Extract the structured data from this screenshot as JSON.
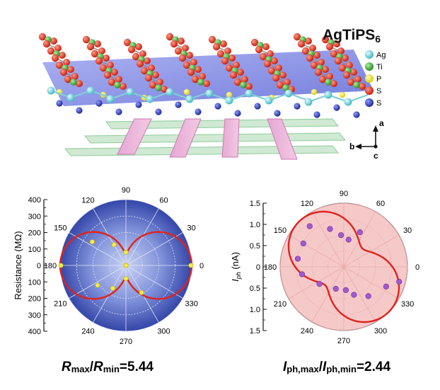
{
  "top_panel": {
    "title_main": "AgTiPS",
    "title_sub": "6",
    "legend": [
      {
        "label": "Ag",
        "color": "#7fd6df"
      },
      {
        "label": "Ti",
        "color": "#3da53d"
      },
      {
        "label": "P",
        "color": "#e8e23a"
      },
      {
        "label": "S",
        "color": "#d9311f"
      },
      {
        "label": "S",
        "color": "#2f3fb5"
      }
    ],
    "axes": {
      "a": "a",
      "b": "b",
      "c": "c"
    }
  },
  "chart_data": [
    {
      "type": "polar",
      "ylabel": "Resistance (MΩ)",
      "scale_ticks": [
        "400",
        "300",
        "200",
        "100",
        "0",
        "100",
        "200",
        "300",
        "400"
      ],
      "angle_labels": [
        "90",
        "60",
        "30",
        "0",
        "330",
        "300",
        "270",
        "240",
        "210",
        "180",
        "150",
        "120"
      ],
      "angle_values": [
        90,
        60,
        30,
        0,
        330,
        300,
        270,
        240,
        210,
        180,
        150,
        120
      ],
      "r_max": 400,
      "fit_rmax": 400,
      "fit_rmin": 73.5,
      "points": [
        {
          "angle": 0,
          "r": 395
        },
        {
          "angle": 180,
          "r": 395
        },
        {
          "angle": 90,
          "r": 80
        },
        {
          "angle": 270,
          "r": 80
        },
        {
          "angle": 30,
          "r": 0
        },
        {
          "angle": 120,
          "r": 145
        },
        {
          "angle": 145,
          "r": 250
        },
        {
          "angle": 215,
          "r": 210
        },
        {
          "angle": 240,
          "r": 160
        },
        {
          "angle": 300,
          "r": 190
        },
        {
          "angle": 330,
          "r": 0
        },
        {
          "angle": 150,
          "r": 0
        }
      ],
      "annotation": {
        "r1": "R",
        "s1": "max",
        "sep": "/",
        "r2": "R",
        "s2": "min",
        "value": "=5.44"
      },
      "colors": {
        "background": "#3a4fb0",
        "fit": "#e0231c",
        "points": "#f5ec4a",
        "grid": "#cfd6ef"
      }
    },
    {
      "type": "polar",
      "ylabel_main": "I",
      "ylabel_sub": "ph",
      "ylabel_unit": " (nA)",
      "scale_ticks": [
        "1.5",
        "1.0",
        "0.5",
        "0",
        "0.5",
        "1.0",
        "1.5"
      ],
      "angle_labels": [
        "90",
        "60",
        "30",
        "0",
        "330",
        "300",
        "270",
        "240",
        "210",
        "180",
        "150",
        "120"
      ],
      "angle_values": [
        90,
        60,
        30,
        0,
        330,
        300,
        270,
        240,
        210,
        180,
        150,
        120
      ],
      "r_max": 1.5,
      "fit_rmax": 1.5,
      "fit_rmin": 0.615,
      "fit_axis_deg": 135,
      "points": [
        {
          "angle": 65,
          "r": 0.9
        },
        {
          "angle": 80,
          "r": 0.65
        },
        {
          "angle": 95,
          "r": 0.75
        },
        {
          "angle": 110,
          "r": 0.95
        },
        {
          "angle": 130,
          "r": 1.25
        },
        {
          "angle": 150,
          "r": 1.1
        },
        {
          "angle": 170,
          "r": 1.1
        },
        {
          "angle": 190,
          "r": 1.0
        },
        {
          "angle": 215,
          "r": 0.7
        },
        {
          "angle": 250,
          "r": 0.55
        },
        {
          "angle": 275,
          "r": 0.55
        },
        {
          "angle": 290,
          "r": 0.7
        },
        {
          "angle": 310,
          "r": 0.9
        },
        {
          "angle": 335,
          "r": 1.1
        },
        {
          "angle": 345,
          "r": 1.35
        }
      ],
      "annotation": {
        "r1": "I",
        "s1": "ph,max",
        "sep": "/",
        "r2": "I",
        "s2": "ph,min",
        "value": "=2.44"
      },
      "colors": {
        "background": "#f6c9c9",
        "fit": "#e0231c",
        "points": "#a05ad0",
        "grid": "#e9a9a9"
      }
    }
  ]
}
